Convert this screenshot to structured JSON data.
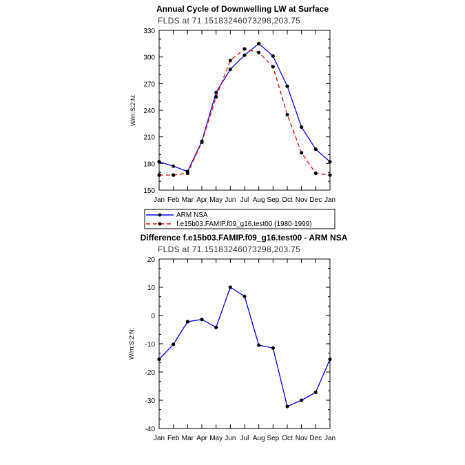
{
  "chart_data": [
    {
      "type": "line",
      "title": "Annual Cycle of Downwelling LW at Surface",
      "subtitle": "FLDS at 71.15183246073298,203.75",
      "ylabel": "W/m:S:2:N:",
      "ylim": [
        150,
        330
      ],
      "yticks": [
        "150",
        "180",
        "210",
        "240",
        "270",
        "300",
        "330"
      ],
      "categories": [
        "Jan",
        "Feb",
        "Mar",
        "Apr",
        "May",
        "Jun",
        "Jul",
        "Aug",
        "Sep",
        "Oct",
        "Nov",
        "Dec",
        "Jan"
      ],
      "legend": "bottom",
      "series": [
        {
          "name": "ARM NSA",
          "color": "#0000ff",
          "dash": "solid",
          "values": [
            182,
            177,
            171,
            205,
            260,
            286,
            302,
            315,
            301,
            267,
            221,
            196,
            182
          ]
        },
        {
          "name": "f.e15b03.FAMIP.f09_g16.test00 (1980-1999)",
          "color": "#ff0000",
          "dash": "dashed",
          "values": [
            167,
            167,
            169,
            204,
            255,
            296,
            309,
            305,
            289,
            235,
            192,
            169,
            167
          ]
        }
      ]
    },
    {
      "type": "line",
      "title": "Difference f.e15b03.FAMIP.f09_g16.test00 - ARM NSA",
      "subtitle": "FLDS at 71.15183246073298,203.75",
      "ylabel": "W/m:S:2:N:",
      "ylim": [
        -40,
        20
      ],
      "yticks": [
        "-40",
        "-30",
        "-20",
        "-10",
        "0",
        "10",
        "20"
      ],
      "categories": [
        "Jan",
        "Feb",
        "Mar",
        "Apr",
        "May",
        "Jun",
        "Jul",
        "Aug",
        "Sep",
        "Oct",
        "Nov",
        "Dec",
        "Jan"
      ],
      "series": [
        {
          "color": "#0000ff",
          "dash": "solid",
          "values": [
            -15.5,
            -10.2,
            -2.2,
            -1.4,
            -4.2,
            10,
            6.8,
            -10.5,
            -11.5,
            -32.2,
            -30,
            -27.2,
            -15.5
          ]
        }
      ]
    }
  ]
}
